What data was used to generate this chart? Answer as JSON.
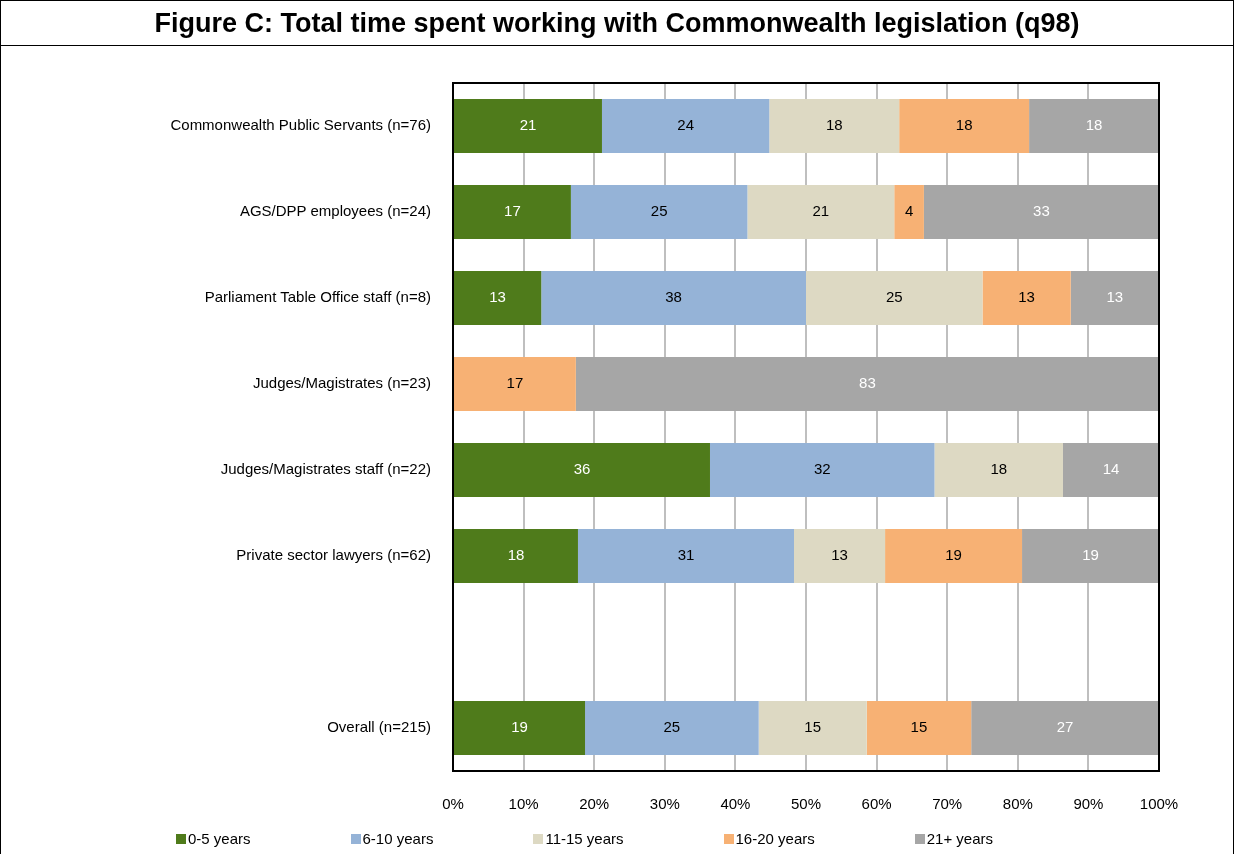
{
  "chart_data": {
    "type": "bar",
    "title": "Figure C: Total time spent working with Commonwealth legislation (q98)",
    "orientation": "horizontal",
    "stacked": true,
    "categories": [
      "Commonwealth Public Servants (n=76)",
      "AGS/DPP employees (n=24)",
      "Parliament Table Office staff (n=8)",
      "Judges/Magistrates (n=23)",
      "Judges/Magistrates staff (n=22)",
      "Private sector lawyers (n=62)",
      null,
      "Overall (n=215)"
    ],
    "series": [
      {
        "name": "0-5 years",
        "color": "#4f7b1b",
        "values": [
          21.1,
          16.7,
          12.5,
          null,
          36.4,
          17.7,
          null,
          18.7
        ],
        "value_labels": [
          "21",
          "17",
          "13",
          null,
          "36",
          "18",
          null,
          "19"
        ]
      },
      {
        "name": "6-10 years",
        "color": "#95b3d7",
        "values": [
          23.7,
          25,
          37.5,
          null,
          31.8,
          30.6,
          null,
          24.6
        ],
        "value_labels": [
          "24",
          "25",
          "38",
          null,
          "32",
          "31",
          null,
          "25"
        ]
      },
      {
        "name": "11-15 years",
        "color": "#ddd9c3",
        "values": [
          18.4,
          20.8,
          25,
          null,
          18.2,
          12.9,
          null,
          15.3
        ],
        "value_labels": [
          "18",
          "21",
          "25",
          null,
          "18",
          "13",
          null,
          "15"
        ]
      },
      {
        "name": "16-20 years",
        "color": "#f7b174",
        "values": [
          18.4,
          4.2,
          12.5,
          17.4,
          null,
          19.4,
          null,
          14.8
        ],
        "value_labels": [
          "18",
          "4",
          "13",
          "17",
          null,
          "19",
          null,
          "15"
        ]
      },
      {
        "name": "21+ years",
        "color": "#a6a6a6",
        "values": [
          18.4,
          33.3,
          12.5,
          82.6,
          13.6,
          19.4,
          null,
          26.6
        ],
        "value_labels": [
          "18",
          "33",
          "13",
          "83",
          "14",
          "19",
          null,
          "27"
        ]
      }
    ],
    "xlim": [
      0,
      100
    ],
    "xticks": [
      {
        "value": 0,
        "label": "0%"
      },
      {
        "value": 10,
        "label": "10%"
      },
      {
        "value": 20,
        "label": "20%"
      },
      {
        "value": 30,
        "label": "30%"
      },
      {
        "value": 40,
        "label": "40%"
      },
      {
        "value": 50,
        "label": "50%"
      },
      {
        "value": 60,
        "label": "60%"
      },
      {
        "value": 70,
        "label": "70%"
      },
      {
        "value": 80,
        "label": "80%"
      },
      {
        "value": 90,
        "label": "90%"
      },
      {
        "value": 100,
        "label": "100%"
      }
    ],
    "grid": "x",
    "legend": "bottom"
  }
}
